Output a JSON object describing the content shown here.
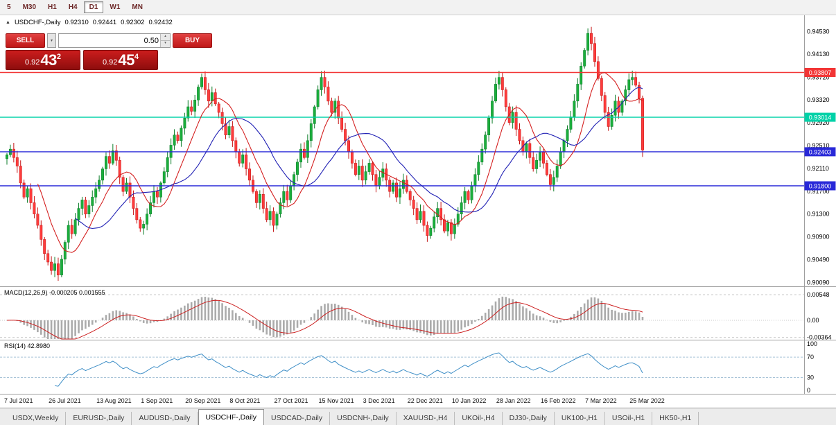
{
  "toolbar": {
    "timeframes": [
      "5",
      "M30",
      "H1",
      "H4",
      "D1",
      "W1",
      "MN"
    ],
    "active": "D1"
  },
  "quote": {
    "collapse_icon": "▲",
    "symbol": "USDCHF-,Daily",
    "open": "0.92310",
    "high": "0.92441",
    "low": "0.92302",
    "close": "0.92432"
  },
  "trade_panel": {
    "sell_label": "SELL",
    "buy_label": "BUY",
    "volume": "0.50",
    "dropdown_icon": "▾",
    "spin_up_icon": "▴",
    "spin_down_icon": "▾",
    "sell_price": {
      "prefix": "0.92",
      "big": "43",
      "sup": "2"
    },
    "buy_price": {
      "prefix": "0.92",
      "big": "45",
      "sup": "4"
    }
  },
  "chart_data": {
    "type": "candlestick",
    "symbol": "USDCHF",
    "timeframe": "Daily",
    "title": "USDCHF-,Daily 0.92310 0.92441 0.92302 0.92432",
    "y_axis_ticks": [
      0.9453,
      0.9413,
      0.9372,
      0.9332,
      0.9292,
      0.9251,
      0.9211,
      0.917,
      0.913,
      0.909,
      0.9049,
      0.9009
    ],
    "y_range": [
      0.9002,
      0.9482
    ],
    "x_ticks": {
      "labels": [
        "7 Jul 2021",
        "26 Jul 2021",
        "13 Aug 2021",
        "1 Sep 2021",
        "20 Sep 2021",
        "8 Oct 2021",
        "27 Oct 2021",
        "15 Nov 2021",
        "3 Dec 2021",
        "22 Dec 2021",
        "10 Jan 2022",
        "28 Jan 2022",
        "16 Feb 2022",
        "7 Mar 2022",
        "25 Mar 2022"
      ],
      "indices": [
        0,
        13,
        27,
        40,
        53,
        66,
        79,
        92,
        105,
        118,
        131,
        144,
        157,
        170,
        183
      ]
    },
    "open_first": 0.9228,
    "closes": [
      0.9235,
      0.9245,
      0.923,
      0.9215,
      0.9185,
      0.916,
      0.9175,
      0.915,
      0.913,
      0.911,
      0.9085,
      0.906,
      0.9045,
      0.903,
      0.9042,
      0.9022,
      0.905,
      0.908,
      0.911,
      0.9095,
      0.912,
      0.914,
      0.9155,
      0.913,
      0.9145,
      0.916,
      0.9175,
      0.919,
      0.921,
      0.9232,
      0.922,
      0.9242,
      0.9225,
      0.9195,
      0.917,
      0.9185,
      0.916,
      0.914,
      0.912,
      0.9105,
      0.9112,
      0.913,
      0.915,
      0.917,
      0.916,
      0.9185,
      0.9205,
      0.923,
      0.9252,
      0.927,
      0.926,
      0.9282,
      0.93,
      0.932,
      0.9312,
      0.9332,
      0.9355,
      0.9372,
      0.935,
      0.933,
      0.9345,
      0.9325,
      0.931,
      0.929,
      0.927,
      0.9285,
      0.926,
      0.924,
      0.922,
      0.9235,
      0.921,
      0.919,
      0.917,
      0.915,
      0.9165,
      0.914,
      0.912,
      0.9135,
      0.911,
      0.913,
      0.915,
      0.917,
      0.9155,
      0.918,
      0.92,
      0.9222,
      0.9245,
      0.923,
      0.926,
      0.929,
      0.932,
      0.935,
      0.9372,
      0.9355,
      0.933,
      0.931,
      0.933,
      0.93,
      0.928,
      0.926,
      0.924,
      0.922,
      0.92,
      0.9215,
      0.919,
      0.9205,
      0.922,
      0.92,
      0.918,
      0.9195,
      0.921,
      0.919,
      0.917,
      0.9185,
      0.916,
      0.9175,
      0.919,
      0.917,
      0.9155,
      0.914,
      0.912,
      0.9135,
      0.911,
      0.9092,
      0.9105,
      0.9125,
      0.914,
      0.912,
      0.91,
      0.9115,
      0.9095,
      0.9112,
      0.913,
      0.915,
      0.917,
      0.9155,
      0.918,
      0.92,
      0.9222,
      0.9245,
      0.927,
      0.93,
      0.933,
      0.936,
      0.9372,
      0.935,
      0.932,
      0.9292,
      0.931,
      0.928,
      0.926,
      0.924,
      0.9255,
      0.923,
      0.921,
      0.9225,
      0.924,
      0.922,
      0.92,
      0.9182,
      0.9195,
      0.9215,
      0.924,
      0.926,
      0.928,
      0.9302,
      0.933,
      0.936,
      0.9392,
      0.942,
      0.945,
      0.9432,
      0.94,
      0.937,
      0.934,
      0.931,
      0.9285,
      0.9305,
      0.933,
      0.931,
      0.933,
      0.935,
      0.9368,
      0.9372,
      0.9358,
      0.9335,
      0.92432
    ],
    "horizontal_lines": [
      {
        "price": 0.93807,
        "label": "0.93807",
        "color": "#f23535"
      },
      {
        "price": 0.93014,
        "label": "0.93014",
        "color": "#00d2a8"
      },
      {
        "price": 0.92403,
        "label": "0.92403",
        "color": "#2828d8"
      },
      {
        "price": 0.918,
        "label": "0.91800",
        "color": "#2828d8"
      }
    ],
    "moving_averages": [
      {
        "period": 10,
        "color": "#d42020"
      },
      {
        "period": 21,
        "color": "#2020b4"
      }
    ],
    "colors": {
      "up": "#1bae3c",
      "up_stroke": "#0b7d28",
      "down": "#ff3c3c",
      "down_stroke": "#c41414",
      "macd_hist": "#ababab",
      "macd_signal": "#cc2020",
      "rsi": "#3f8fc7"
    },
    "macd": {
      "label": "MACD(12,26,9)",
      "value": "-0.000205",
      "signal": "0.001555",
      "fast": 12,
      "slow": 26,
      "signal_period": 9,
      "axis": [
        0.00548,
        0,
        -0.00364
      ],
      "axis_labels": [
        "0.00548",
        "0.00",
        "-0.00364"
      ]
    },
    "rsi": {
      "label": "RSI(14)",
      "value": "42.8980",
      "period": 14,
      "axis": [
        100,
        70,
        30,
        0
      ],
      "axis_labels": [
        "100",
        "70",
        "30",
        "0"
      ],
      "levels": [
        70,
        30
      ]
    }
  },
  "tabs": {
    "active_index": 3,
    "items": [
      "USDX,Weekly",
      "EURUSD-,Daily",
      "AUDUSD-,Daily",
      "USDCHF-,Daily",
      "USDCAD-,Daily",
      "USDCNH-,Daily",
      "XAUUSD-,H4",
      "UKOil-,H4",
      "DJ30-,Daily",
      "UK100-,H1",
      "USOil-,H1",
      "HK50-,H1"
    ]
  }
}
